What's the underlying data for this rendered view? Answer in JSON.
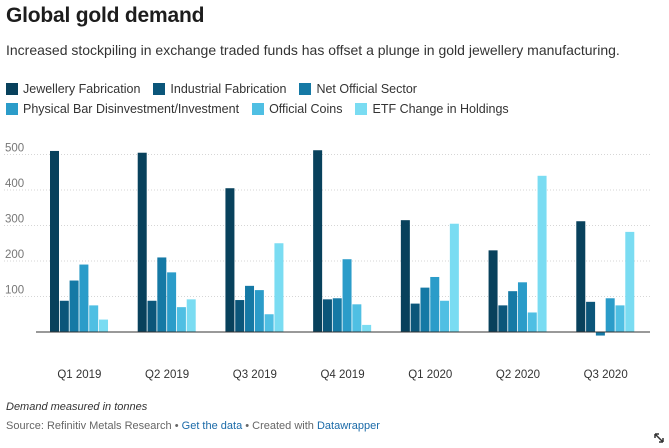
{
  "header": {
    "title": "Global gold demand",
    "subtitle": "Increased stockpiling in exchange traded funds has offset a plunge in gold jewellery manufacturing."
  },
  "legend": [
    {
      "label": "Jewellery Fabrication",
      "color": "#08415c"
    },
    {
      "label": "Industrial Fabrication",
      "color": "#0b567a"
    },
    {
      "label": "Net Official Sector",
      "color": "#1579a5"
    },
    {
      "label": "Physical Bar Disinvestment/Investment",
      "color": "#2b9cc9"
    },
    {
      "label": "Official Coins",
      "color": "#4fbfe3"
    },
    {
      "label": "ETF Change in Holdings",
      "color": "#7adcf2"
    }
  ],
  "chart_data": {
    "type": "bar",
    "categories": [
      "Q1 2019",
      "Q2 2019",
      "Q3 2019",
      "Q4 2019",
      "Q1 2020",
      "Q2 2020",
      "Q3 2020"
    ],
    "series": [
      {
        "name": "Jewellery Fabrication",
        "values": [
          510,
          505,
          405,
          512,
          315,
          230,
          312
        ]
      },
      {
        "name": "Industrial Fabrication",
        "values": [
          88,
          88,
          90,
          92,
          80,
          75,
          85
        ]
      },
      {
        "name": "Net Official Sector",
        "values": [
          145,
          210,
          130,
          95,
          125,
          115,
          -10
        ]
      },
      {
        "name": "Physical Bar Disinvestment/Investment",
        "values": [
          190,
          168,
          118,
          205,
          155,
          140,
          95
        ]
      },
      {
        "name": "Official Coins",
        "values": [
          75,
          70,
          50,
          78,
          88,
          55,
          75
        ]
      },
      {
        "name": "ETF Change in Holdings",
        "values": [
          35,
          92,
          250,
          20,
          305,
          440,
          282
        ]
      }
    ],
    "ylim": [
      0,
      520
    ],
    "yticks": [
      100,
      200,
      300,
      400,
      500
    ],
    "grid": "horizontal dotted",
    "legend_position": "top"
  },
  "note": "Demand measured in tonnes",
  "footer": {
    "source": "Source: Refinitiv Metals Research • ",
    "get_data": "Get the data",
    "created": " • Created with ",
    "datawrapper": "Datawrapper"
  },
  "icons": {
    "resize": "resize-arrow-icon"
  }
}
